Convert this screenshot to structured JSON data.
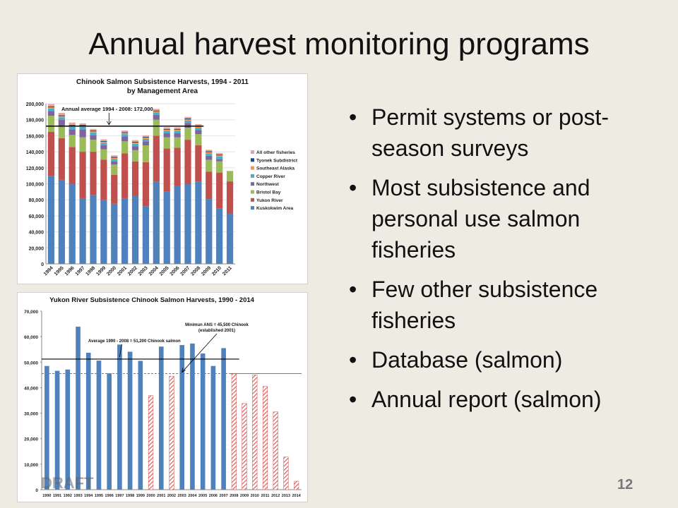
{
  "slide": {
    "title": "Annual harvest monitoring programs",
    "bullets": [
      "Permit systems or post-season surveys",
      "Most subsistence and personal use salmon fisheries",
      "Few other subsistence fisheries",
      "Database (salmon)",
      "Annual report (salmon)"
    ],
    "page_number": "12",
    "watermark": "DRAFT"
  },
  "chart_data": [
    {
      "type": "bar",
      "stacked": true,
      "title": "Chinook Salmon Subsistence Harvests, 1994 - 2011",
      "subtitle": "by Management Area",
      "categories": [
        "1994",
        "1995",
        "1996",
        "1997",
        "1998",
        "1999",
        "2000",
        "2001",
        "2002",
        "2003",
        "2004",
        "2005",
        "2006",
        "2007",
        "2008",
        "2009",
        "2010",
        "2011"
      ],
      "ylim": [
        0,
        200000
      ],
      "yticks": [
        "0",
        "20,000",
        "40,000",
        "60,000",
        "80,000",
        "100,000",
        "120,000",
        "140,000",
        "160,000",
        "180,000",
        "200,000"
      ],
      "legend_position": "right",
      "series": [
        {
          "name": "Kuskokwim Area",
          "color": "#4f81bd",
          "values": [
            110000,
            105000,
            100000,
            82000,
            86000,
            80000,
            75000,
            82000,
            85000,
            72000,
            103000,
            90000,
            97000,
            100000,
            103000,
            81000,
            69000,
            63000
          ]
        },
        {
          "name": "Yukon River",
          "color": "#c0504d",
          "values": [
            55000,
            52000,
            46000,
            58000,
            54000,
            50000,
            36000,
            56000,
            43000,
            55000,
            57000,
            54000,
            48000,
            55000,
            45000,
            34000,
            45000,
            40000
          ]
        },
        {
          "name": "Bristol Bay",
          "color": "#9bbb59",
          "values": [
            20000,
            15000,
            15000,
            18000,
            15000,
            13000,
            13000,
            15000,
            14000,
            21000,
            20000,
            14000,
            13000,
            15000,
            14000,
            15000,
            14000,
            13000
          ]
        },
        {
          "name": "Northwest",
          "color": "#8064a2",
          "values": [
            6000,
            8000,
            7000,
            10000,
            6000,
            5000,
            4000,
            6000,
            5000,
            5000,
            6000,
            5000,
            5000,
            6000,
            5000,
            5000,
            3000,
            0
          ]
        },
        {
          "name": "Copper River",
          "color": "#4bacc6",
          "values": [
            3000,
            3000,
            3000,
            3000,
            3000,
            3000,
            3000,
            3000,
            3000,
            3000,
            3000,
            3000,
            3000,
            3000,
            3000,
            3000,
            3000,
            0
          ]
        },
        {
          "name": "Southeast Alaska",
          "color": "#f79646",
          "values": [
            1500,
            1500,
            1500,
            1500,
            1500,
            1500,
            1500,
            1500,
            1500,
            1500,
            1500,
            1500,
            1500,
            1500,
            1500,
            1500,
            1500,
            0
          ]
        },
        {
          "name": "Tyonek Subdistrict",
          "color": "#1f497d",
          "values": [
            1000,
            1000,
            1000,
            1000,
            1000,
            1000,
            1000,
            1000,
            1000,
            1000,
            1000,
            1000,
            1000,
            1000,
            1000,
            1000,
            1000,
            0
          ]
        },
        {
          "name": "All other fisheries",
          "color": "#e6a4a0",
          "values": [
            3000,
            3000,
            3000,
            2000,
            2000,
            2000,
            2000,
            2000,
            2000,
            2000,
            2000,
            2000,
            2000,
            2000,
            2000,
            2000,
            2000,
            0
          ]
        }
      ],
      "reference_line": {
        "label": "Annual average 1994 - 2008:  172,000",
        "value": 172000,
        "from": "1994",
        "to": "2008"
      }
    },
    {
      "type": "bar",
      "title": "Yukon River Subsistence Chinook Salmon Harvests, 1990 - 2014",
      "categories": [
        "1990",
        "1991",
        "1992",
        "1993",
        "1994",
        "1995",
        "1996",
        "1997",
        "1998",
        "1999",
        "2000",
        "2001",
        "2002",
        "2003",
        "2004",
        "2005",
        "2006",
        "2007",
        "2008",
        "2009",
        "2010",
        "2011",
        "2012",
        "2013",
        "2014"
      ],
      "values": [
        48500,
        46600,
        47100,
        63900,
        53700,
        50600,
        45600,
        56900,
        54100,
        50500,
        36900,
        56100,
        44500,
        56700,
        57300,
        53400,
        48500,
        55500,
        45400,
        33800,
        45000,
        40500,
        30500,
        12800,
        3300
      ],
      "hatched_categories": [
        "2000",
        "2002",
        "2008",
        "2009",
        "2010",
        "2011",
        "2012",
        "2013",
        "2014"
      ],
      "ylim": [
        0,
        70000
      ],
      "yticks": [
        "0",
        "10,000",
        "20,000",
        "30,000",
        "40,000",
        "50,000",
        "60,000",
        "70,000"
      ],
      "bar_color": "#4f81bd",
      "hatch_color": "#d9534f",
      "reference_lines": [
        {
          "label": "Average 1990 - 2008 = 51,200 Chinook salmon",
          "value": 51200,
          "style": "solid",
          "color": "#000000",
          "from": "1990",
          "to": "2008"
        },
        {
          "label": "Minimun ANS = 45,500 Chinook",
          "sublabel": "(established 2001)",
          "value": 45500,
          "style": "dashed",
          "color": "#d9534f",
          "from": "1990",
          "to": "2014"
        }
      ]
    }
  ]
}
